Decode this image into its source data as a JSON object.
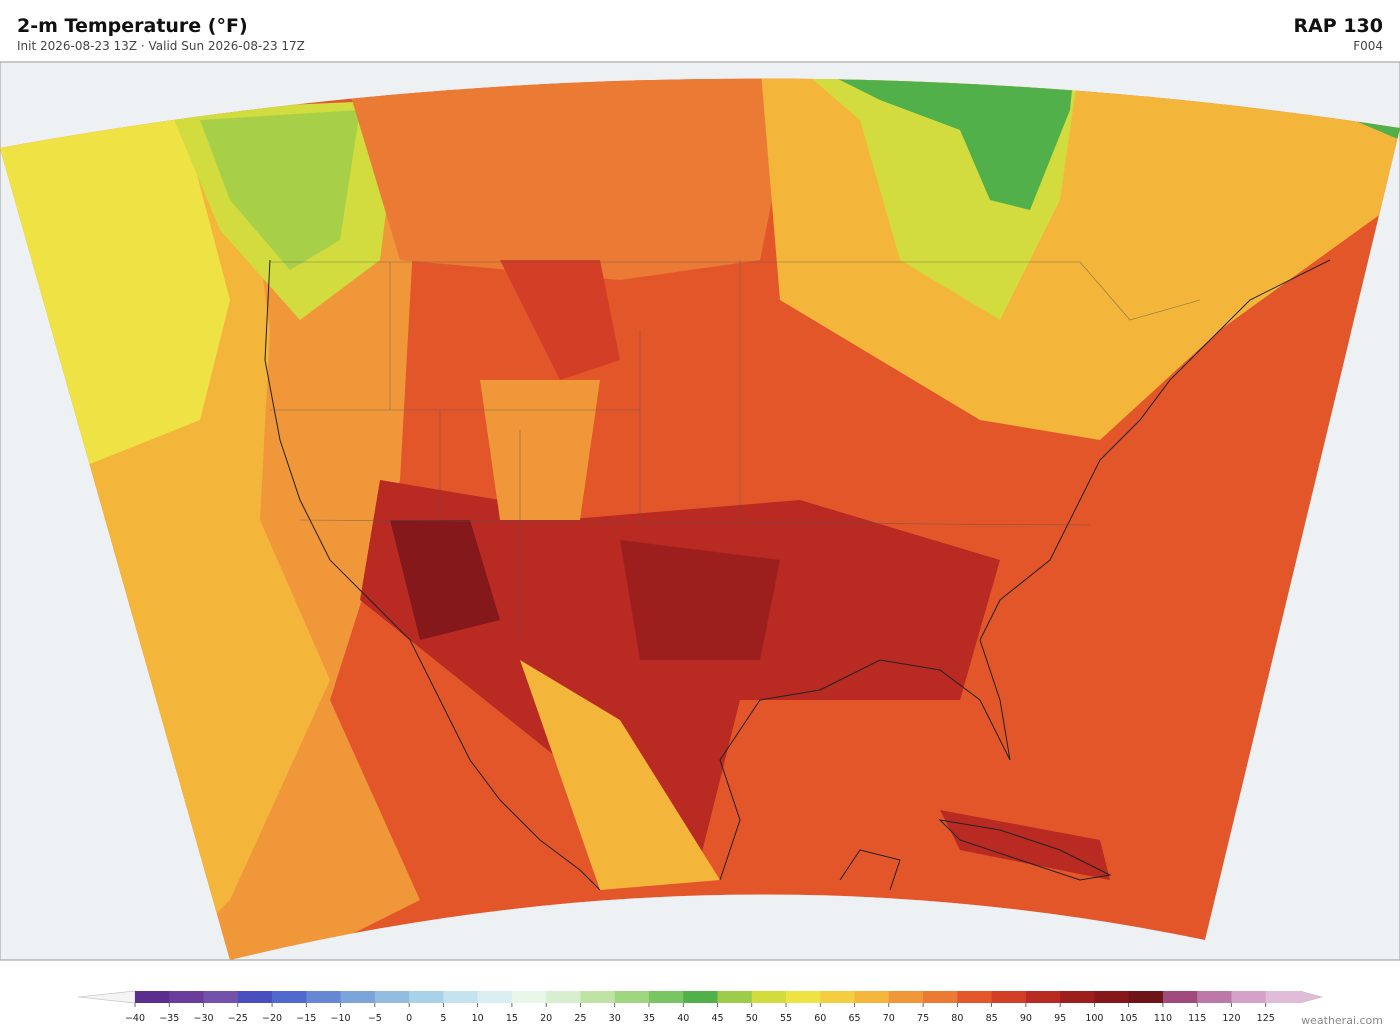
{
  "header": {
    "title": "2-m Temperature  (°F)",
    "subtitle": "Init 2026-08-23 13Z  ·  Valid Sun 2026-08-23 17Z",
    "model": "RAP  130",
    "forecast_hour": "F004"
  },
  "colorbar": {
    "ticks": [
      {
        "value": -40,
        "label": "−40"
      },
      {
        "value": -35,
        "label": "−35"
      },
      {
        "value": -30,
        "label": "−30"
      },
      {
        "value": -25,
        "label": "−25"
      },
      {
        "value": -20,
        "label": "−20"
      },
      {
        "value": -15,
        "label": "−15"
      },
      {
        "value": -10,
        "label": "−10"
      },
      {
        "value": -5,
        "label": "−5"
      },
      0,
      5,
      10,
      15,
      20,
      25,
      30,
      35,
      40,
      45,
      50,
      55,
      60,
      65,
      70,
      75,
      80,
      85,
      90,
      95,
      100,
      105,
      110,
      115,
      120,
      125
    ],
    "colors": [
      "#5a2d8f",
      "#6a3d9c",
      "#7252ab",
      "#4a4fc0",
      "#4f6acc",
      "#6688d4",
      "#7aa4da",
      "#92bde0",
      "#a8d2e8",
      "#c4e3ef",
      "#dbeff2",
      "#e8f6ea",
      "#d8efcf",
      "#bfe3a4",
      "#9fd680",
      "#78c663",
      "#52b04a",
      "#9ccc4a",
      "#d2dc3e",
      "#efe244",
      "#f5cd40",
      "#f3b53a",
      "#f0973a",
      "#eb7a34",
      "#e3562a",
      "#d23e26",
      "#b82a22",
      "#9c1f1e",
      "#85181b",
      "#6e1418",
      "#9e4a7c",
      "#bc78a8",
      "#d4a2c8",
      "#e0bcd8"
    ]
  },
  "credit": "weatherai.com"
}
